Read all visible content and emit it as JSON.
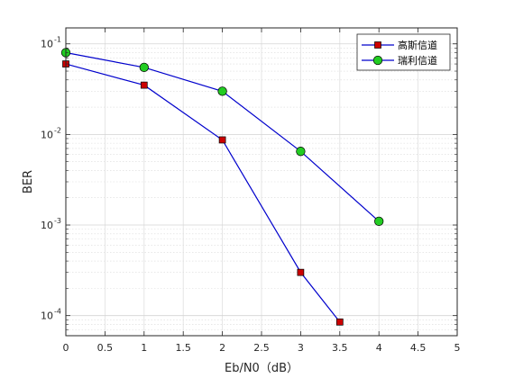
{
  "chart_data": {
    "type": "line",
    "title": "",
    "xlabel": "Eb/N0（dB）",
    "ylabel": "BER",
    "xlim": [
      0,
      5
    ],
    "ylim": [
      6e-05,
      0.15
    ],
    "yscale": "log",
    "grid": true,
    "minor_grid": true,
    "legend_position": "top-right",
    "x_ticks": [
      0,
      0.5,
      1,
      1.5,
      2,
      2.5,
      3,
      3.5,
      4,
      4.5,
      5
    ],
    "x_tick_labels": [
      "0",
      "0.5",
      "1",
      "1.5",
      "2",
      "2.5",
      "3",
      "3.5",
      "4",
      "4.5",
      "5"
    ],
    "y_ticks": [
      0.0001,
      0.001,
      0.01,
      0.1
    ],
    "y_tick_labels": [
      {
        "base": "10",
        "exp": "-4"
      },
      {
        "base": "10",
        "exp": "-3"
      },
      {
        "base": "10",
        "exp": "-2"
      },
      {
        "base": "10",
        "exp": "-1"
      }
    ],
    "series": [
      {
        "name": "高斯信道",
        "marker": "square",
        "line_color": "#0000cc",
        "marker_fill": "#cc0000",
        "x": [
          0,
          1,
          2,
          3,
          3.5
        ],
        "y": [
          0.06,
          0.035,
          0.0087,
          0.0003,
          8.5e-05
        ]
      },
      {
        "name": "瑞利信道",
        "marker": "circle",
        "line_color": "#0000cc",
        "marker_fill": "#22cc22",
        "x": [
          0,
          1,
          2,
          3,
          4
        ],
        "y": [
          0.08,
          0.055,
          0.03,
          0.0065,
          0.0011
        ]
      }
    ]
  }
}
